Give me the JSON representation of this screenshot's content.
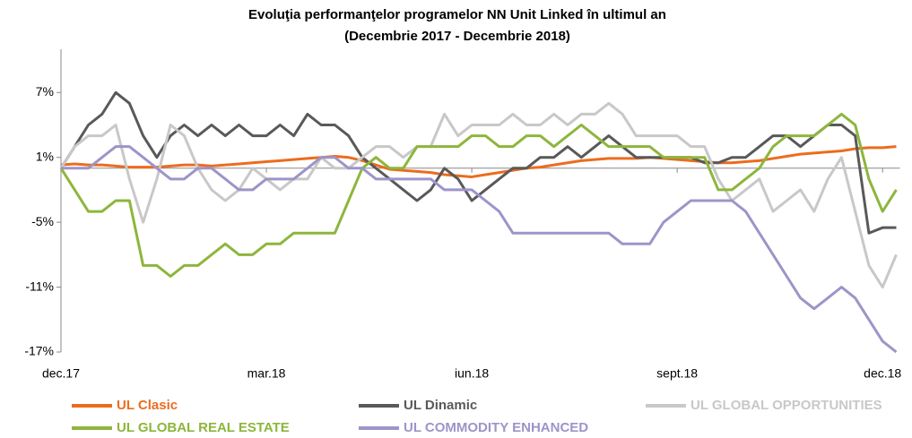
{
  "chart_data": {
    "type": "line",
    "title": [
      "Evoluţia performanţelor programelor NN Unit Linked în ultimul an",
      "(Decembrie 2017 - Decembrie 2018)"
    ],
    "categories": [
      "dec.17",
      null,
      null,
      null,
      null,
      null,
      null,
      null,
      null,
      null,
      null,
      null,
      null,
      null,
      null,
      "mar.18",
      null,
      null,
      null,
      null,
      null,
      null,
      null,
      null,
      null,
      null,
      null,
      null,
      null,
      null,
      "iun.18",
      null,
      null,
      null,
      null,
      null,
      null,
      null,
      null,
      null,
      null,
      null,
      null,
      null,
      null,
      "sept.18",
      null,
      null,
      null,
      null,
      null,
      null,
      null,
      null,
      null,
      null,
      null,
      null,
      null,
      null,
      "dec.18",
      null
    ],
    "series": [
      {
        "name": "UL Clasic",
        "color": "#ec6c1f",
        "values": [
          0.3,
          0.4,
          0.3,
          0.3,
          0.2,
          0.1,
          0.1,
          0.1,
          0.2,
          0.3,
          0.3,
          0.2,
          0.3,
          0.4,
          0.5,
          0.6,
          0.7,
          0.8,
          0.9,
          1.0,
          1.1,
          1.0,
          0.7,
          0.3,
          -0.1,
          -0.2,
          -0.3,
          -0.4,
          -0.6,
          -0.7,
          -0.8,
          -0.6,
          -0.4,
          -0.2,
          0,
          0.1,
          0.3,
          0.5,
          0.7,
          0.8,
          0.9,
          0.9,
          0.9,
          1.0,
          0.9,
          0.8,
          0.7,
          0.6,
          0.5,
          0.5,
          0.6,
          0.7,
          0.9,
          1.1,
          1.3,
          1.4,
          1.5,
          1.6,
          1.8,
          1.9,
          1.9,
          2.0
        ]
      },
      {
        "name": "UL Dinamic",
        "color": "#595959",
        "values": [
          0,
          2,
          4,
          5,
          7,
          6,
          3,
          1,
          3,
          4,
          3,
          4,
          3,
          4,
          3,
          3,
          4,
          3,
          5,
          4,
          4,
          3,
          1,
          0,
          -1,
          -2,
          -3,
          -2,
          0,
          -1,
          -3,
          -2,
          -1,
          0,
          0,
          1,
          1,
          2,
          1,
          2,
          3,
          2,
          1,
          1,
          1,
          1,
          1,
          0.5,
          0.5,
          1,
          1,
          2,
          3,
          3,
          2,
          3,
          4,
          4,
          3,
          -6,
          -5.5,
          -5.5
        ]
      },
      {
        "name": "UL GLOBAL OPPORTUNITIES",
        "color": "#c8c8c8",
        "values": [
          0,
          2,
          3,
          3,
          4,
          -1,
          -5,
          -1,
          4,
          3,
          0,
          -2,
          -3,
          -2,
          0,
          -1,
          -2,
          -1,
          -1,
          1,
          0,
          0,
          1,
          2,
          2,
          1,
          2,
          2,
          5,
          3,
          4,
          4,
          4,
          5,
          4,
          4,
          5,
          4,
          5,
          5,
          6,
          5,
          3,
          3,
          3,
          3,
          2,
          2,
          -1,
          -3,
          -2,
          -1,
          -4,
          -3,
          -2,
          -4,
          -1,
          1,
          -4,
          -9,
          -11,
          -8
        ]
      },
      {
        "name": "UL GLOBAL REAL ESTATE",
        "color": "#8db63c",
        "values": [
          0,
          -2,
          -4,
          -4,
          -3,
          -3,
          -9,
          -9,
          -10,
          -9,
          -9,
          -8,
          -7,
          -8,
          -8,
          -7,
          -7,
          -6,
          -6,
          -6,
          -6,
          -3,
          0,
          1,
          0,
          0,
          2,
          2,
          2,
          2,
          3,
          3,
          2,
          2,
          3,
          3,
          2,
          3,
          4,
          3,
          2,
          2,
          2,
          2,
          1,
          1,
          1,
          1,
          -2,
          -2,
          -1,
          0,
          2,
          3,
          3,
          3,
          4,
          5,
          4,
          -1,
          -4,
          -2
        ]
      },
      {
        "name": "UL COMMODITY ENHANCED",
        "color": "#9d94c9",
        "values": [
          0,
          0,
          0,
          1,
          2,
          2,
          1,
          0,
          -1,
          -1,
          0,
          0,
          -1,
          -2,
          -2,
          -1,
          -1,
          -1,
          0,
          1,
          1,
          0,
          0,
          -1,
          -1,
          -1,
          -1,
          -1,
          -2,
          -2,
          -2,
          -3,
          -4,
          -6,
          -6,
          -6,
          -6,
          -6,
          -6,
          -6,
          -6,
          -7,
          -7,
          -7,
          -5,
          -4,
          -3,
          -3,
          -3,
          -3,
          -4,
          -6,
          -8,
          -10,
          -12,
          -13,
          -12,
          -11,
          -12,
          -14,
          -16,
          -17
        ]
      }
    ],
    "ylim": [
      -17,
      11
    ],
    "yticks": [
      {
        "value": -17,
        "label": "-17%"
      },
      {
        "value": -11,
        "label": "-11%"
      },
      {
        "value": -5,
        "label": "-5%"
      },
      {
        "value": 1,
        "label": "1%"
      },
      {
        "value": 7,
        "label": "7%"
      }
    ],
    "grid": false,
    "legend": "bottom"
  }
}
